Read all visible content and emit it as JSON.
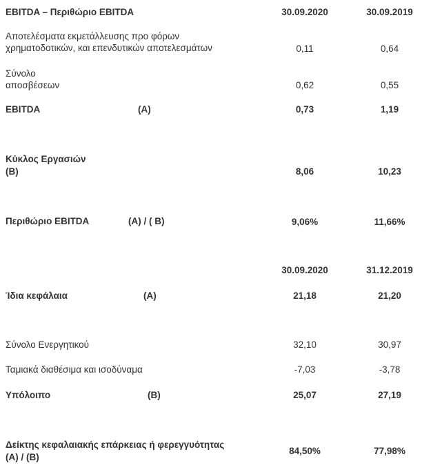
{
  "table1": {
    "title": "EBITDA – Περιθώριο EBITDA",
    "col1": "30.09.2020",
    "col2": "30.09.2019",
    "rows": [
      {
        "label_line1": "Αποτελέσματα εκμετάλλευσης προ φόρων",
        "label_line2": "χρηματοδοτικών, και επενδυτικών αποτελεσμάτων",
        "v1": "0,11",
        "v2": "0,64"
      },
      {
        "label_line1": "Σύνολο",
        "label_line2": "αποσβέσεων",
        "v1": "0,62",
        "v2": "0,55"
      },
      {
        "label": "EBITDA",
        "marker": "(A)",
        "v1": "0,73",
        "v2": "1,19"
      },
      {
        "label_line1": "Κύκλος Εργασιών",
        "label_line2": "(B)",
        "v1": "8,06",
        "v2": "10,23"
      },
      {
        "label": "Περιθώριο EBITDA",
        "marker": "(A) / ( B)",
        "v1": "9,06%",
        "v2": "11,66%"
      }
    ]
  },
  "table2": {
    "col1": "30.09.2020",
    "col2": "31.12.2019",
    "rows": [
      {
        "label": "Ίδια κεφάλαια",
        "marker": "(A)",
        "v1": "21,18",
        "v2": "21,20"
      },
      {
        "label": "Σύνολο Ενεργητικού",
        "v1": "32,10",
        "v2": "30,97"
      },
      {
        "label": "Ταμιακά διαθέσιμα και ισοδύναμα",
        "v1": "-7,03",
        "v2": "-3,78"
      },
      {
        "label": "Υπόλοιπο",
        "marker": "(B)",
        "v1": "25,07",
        "v2": "27,19"
      },
      {
        "label_line1": "Δείκτης κεφαλαιακής επάρκειας ή φερεγγυότητας",
        "label_line2": "(A) / (B)",
        "v1": "84,50%",
        "v2": "77,98%"
      }
    ]
  }
}
